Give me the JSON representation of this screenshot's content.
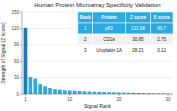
{
  "chart_data": {
    "type": "bar",
    "title": "Human Protein Microarray Specificity Validation",
    "x_label": "Signal Rank",
    "y_label": "Strength of Signal (Z score)",
    "x": [
      1,
      2,
      3,
      4,
      5,
      6,
      7,
      8,
      9,
      10,
      11,
      12,
      13,
      14,
      15,
      16,
      17,
      18,
      19,
      20,
      21,
      22,
      23,
      24,
      25,
      26,
      27,
      28,
      29,
      30
    ],
    "values": [
      121.08,
      30.95,
      28.21,
      18,
      14,
      11,
      9,
      8,
      7,
      6.5,
      6,
      5.5,
      5,
      4.5,
      4,
      3.8,
      3.5,
      3.2,
      3,
      2.8,
      2.6,
      2.4,
      2.2,
      2.0,
      1.8,
      1.6,
      1.4,
      1.2,
      1.0,
      0.8
    ],
    "colors": [
      "#1a7abf",
      "#29abe2",
      "#29abe2",
      "#29abe2",
      "#29abe2",
      "#29abe2",
      "#29abe2",
      "#29abe2",
      "#29abe2",
      "#29abe2",
      "#29abe2",
      "#29abe2",
      "#29abe2",
      "#29abe2",
      "#29abe2",
      "#29abe2",
      "#29abe2",
      "#29abe2",
      "#29abe2",
      "#29abe2",
      "#29abe2",
      "#29abe2",
      "#29abe2",
      "#29abe2",
      "#29abe2",
      "#29abe2",
      "#29abe2",
      "#29abe2",
      "#29abe2",
      "#29abe2"
    ],
    "xlim": [
      0.3,
      31
    ],
    "xticks": [
      1,
      10,
      20,
      30
    ],
    "ylim": [
      0,
      150
    ],
    "yticks": [
      0,
      30,
      60,
      90,
      120,
      150
    ],
    "grid": true,
    "table_headers": [
      "Rank",
      "Protein",
      "Z score",
      "S score"
    ],
    "table_rows": [
      [
        "1",
        "p63",
        "121.08",
        "90.7"
      ],
      [
        "2",
        "CD1a",
        "30.95",
        "2.75"
      ],
      [
        "3",
        "Uroplakin 1A",
        "28.21",
        "0.12"
      ]
    ]
  }
}
